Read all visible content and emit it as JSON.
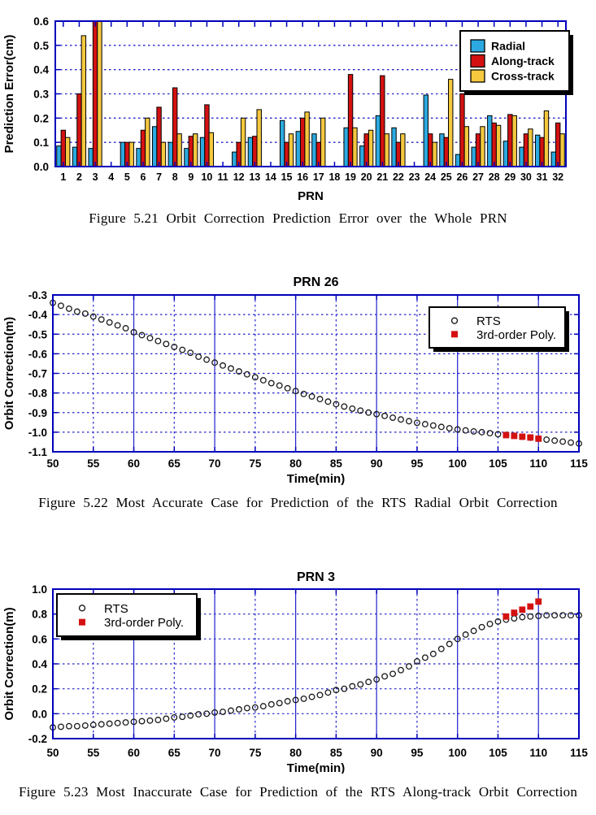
{
  "page": {
    "background": "#ffffff"
  },
  "colors": {
    "frame_blue": "#0000bb",
    "grid_blue": "#2222cc",
    "marker_black": "#1a1a1a",
    "radial_blue": "#2ca9e0",
    "along_red": "#d41111",
    "cross_yellow": "#f5c83e",
    "legend_bg": "#ffffff",
    "legend_shadow": "#000000"
  },
  "chart_data": [
    {
      "type": "bar",
      "title": "",
      "xlabel": "PRN",
      "ylabel": "Prediction Error(cm)",
      "ylim": [
        0,
        0.6
      ],
      "ytick_step": 0.1,
      "grid": "horizontal-dotted",
      "legend_position": "top-right",
      "categories": [
        1,
        2,
        3,
        4,
        5,
        6,
        7,
        8,
        9,
        10,
        11,
        12,
        13,
        14,
        15,
        16,
        17,
        18,
        19,
        20,
        21,
        22,
        23,
        24,
        25,
        26,
        27,
        28,
        29,
        30,
        31,
        32
      ],
      "series": [
        {
          "name": "Radial",
          "color": "#2ca9e0",
          "values": [
            0.085,
            0.08,
            0.075,
            null,
            0.1,
            0.075,
            0.165,
            0.1,
            0.075,
            0.12,
            null,
            0.06,
            0.12,
            null,
            0.19,
            0.145,
            0.135,
            null,
            0.16,
            0.085,
            0.21,
            0.16,
            null,
            0.295,
            0.135,
            0.05,
            0.08,
            0.21,
            0.105,
            0.08,
            0.13,
            0.06
          ]
        },
        {
          "name": "Along-track",
          "color": "#d41111",
          "values": [
            0.15,
            0.3,
            0.6,
            null,
            0.1,
            0.15,
            0.245,
            0.325,
            0.125,
            0.255,
            null,
            0.1,
            0.125,
            null,
            0.1,
            0.2,
            0.1,
            null,
            0.38,
            0.135,
            0.375,
            0.1,
            null,
            0.135,
            0.12,
            0.3,
            0.135,
            0.18,
            0.215,
            0.135,
            0.12,
            0.18
          ]
        },
        {
          "name": "Cross-track",
          "color": "#f5c83e",
          "values": [
            0.12,
            0.54,
            0.6,
            null,
            0.1,
            0.2,
            0.1,
            0.135,
            0.135,
            0.14,
            null,
            0.2,
            0.235,
            null,
            0.135,
            0.225,
            0.2,
            null,
            0.16,
            0.15,
            0.135,
            0.135,
            null,
            0.1,
            0.36,
            0.165,
            0.165,
            0.17,
            0.21,
            0.155,
            0.23,
            0.135
          ]
        }
      ],
      "note": "PRN 3 along-track and cross-track bars exceed the 0.6 axis limit and are clipped at the top frame. PRNs 4, 11, 14, 18 and 23 have no bars.",
      "caption": "Figure 5.21 Orbit Correction Prediction Error over the Whole PRN"
    },
    {
      "type": "scatter",
      "title": "PRN 26",
      "xlabel": "Time(min)",
      "ylabel": "Orbit Correction(m)",
      "xlim": [
        50,
        115
      ],
      "xtick_step": 5,
      "ylim": [
        -1.1,
        -0.3
      ],
      "ytick_step": 0.1,
      "grid": "dotted",
      "legend_position": "top-right",
      "series": [
        {
          "name": "RTS",
          "marker": "circle",
          "color": "#1a1a1a",
          "x": [
            50,
            51,
            52,
            53,
            54,
            55,
            56,
            57,
            58,
            59,
            60,
            61,
            62,
            63,
            64,
            65,
            66,
            67,
            68,
            69,
            70,
            71,
            72,
            73,
            74,
            75,
            76,
            77,
            78,
            79,
            80,
            81,
            82,
            83,
            84,
            85,
            86,
            87,
            88,
            89,
            90,
            91,
            92,
            93,
            94,
            95,
            96,
            97,
            98,
            99,
            100,
            101,
            102,
            103,
            104,
            105,
            106,
            107,
            108,
            109,
            110,
            111,
            112,
            113,
            114,
            115
          ],
          "y": [
            -0.34,
            -0.355,
            -0.37,
            -0.385,
            -0.395,
            -0.41,
            -0.425,
            -0.44,
            -0.455,
            -0.47,
            -0.49,
            -0.505,
            -0.52,
            -0.535,
            -0.55,
            -0.565,
            -0.58,
            -0.595,
            -0.615,
            -0.63,
            -0.645,
            -0.66,
            -0.675,
            -0.69,
            -0.705,
            -0.72,
            -0.735,
            -0.75,
            -0.762,
            -0.776,
            -0.79,
            -0.805,
            -0.818,
            -0.831,
            -0.844,
            -0.857,
            -0.869,
            -0.88,
            -0.89,
            -0.9,
            -0.908,
            -0.917,
            -0.926,
            -0.935,
            -0.944,
            -0.952,
            -0.959,
            -0.966,
            -0.973,
            -0.98,
            -0.986,
            -0.991,
            -0.996,
            -1.0,
            -1.005,
            -1.01,
            -1.014,
            -1.018,
            -1.023,
            -1.028,
            -1.033,
            -1.038,
            -1.043,
            -1.048,
            -1.053,
            -1.058
          ]
        },
        {
          "name": "3rd-order Poly.",
          "marker": "square",
          "color": "#d41111",
          "x": [
            106,
            107,
            108,
            109,
            110
          ],
          "y": [
            -1.015,
            -1.019,
            -1.023,
            -1.027,
            -1.033
          ]
        }
      ],
      "caption": "Figure 5.22 Most Accurate Case for Prediction of the RTS Radial Orbit Correction"
    },
    {
      "type": "scatter",
      "title": "PRN 3",
      "xlabel": "Time(min)",
      "ylabel": "Orbit Correction(m)",
      "xlim": [
        50,
        115
      ],
      "xtick_step": 5,
      "ylim": [
        -0.2,
        1.0
      ],
      "ytick_step": 0.2,
      "grid": "dotted",
      "legend_position": "top-left",
      "series": [
        {
          "name": "RTS",
          "marker": "circle",
          "color": "#1a1a1a",
          "x": [
            50,
            51,
            52,
            53,
            54,
            55,
            56,
            57,
            58,
            59,
            60,
            61,
            62,
            63,
            64,
            65,
            66,
            67,
            68,
            69,
            70,
            71,
            72,
            73,
            74,
            75,
            76,
            77,
            78,
            79,
            80,
            81,
            82,
            83,
            84,
            85,
            86,
            87,
            88,
            89,
            90,
            91,
            92,
            93,
            94,
            95,
            96,
            97,
            98,
            99,
            100,
            101,
            102,
            103,
            104,
            105,
            106,
            107,
            108,
            109,
            110,
            111,
            112,
            113,
            114,
            115
          ],
          "y": [
            -0.11,
            -0.105,
            -0.1,
            -0.1,
            -0.095,
            -0.09,
            -0.085,
            -0.08,
            -0.075,
            -0.07,
            -0.065,
            -0.06,
            -0.055,
            -0.05,
            -0.04,
            -0.03,
            -0.025,
            -0.015,
            -0.005,
            0.0,
            0.01,
            0.015,
            0.025,
            0.035,
            0.045,
            0.05,
            0.06,
            0.075,
            0.085,
            0.1,
            0.11,
            0.12,
            0.135,
            0.15,
            0.17,
            0.19,
            0.2,
            0.22,
            0.235,
            0.255,
            0.275,
            0.3,
            0.32,
            0.35,
            0.38,
            0.42,
            0.45,
            0.48,
            0.52,
            0.56,
            0.6,
            0.635,
            0.665,
            0.695,
            0.72,
            0.74,
            0.755,
            0.765,
            0.775,
            0.78,
            0.785,
            0.79,
            0.79,
            0.79,
            0.79,
            0.79
          ]
        },
        {
          "name": "3rd-order Poly.",
          "marker": "square",
          "color": "#d41111",
          "x": [
            106,
            107,
            108,
            109,
            110
          ],
          "y": [
            0.78,
            0.81,
            0.835,
            0.86,
            0.9
          ]
        }
      ],
      "caption": "Figure 5.23 Most Inaccurate Case for Prediction of the RTS Along-track Orbit Correction"
    }
  ]
}
